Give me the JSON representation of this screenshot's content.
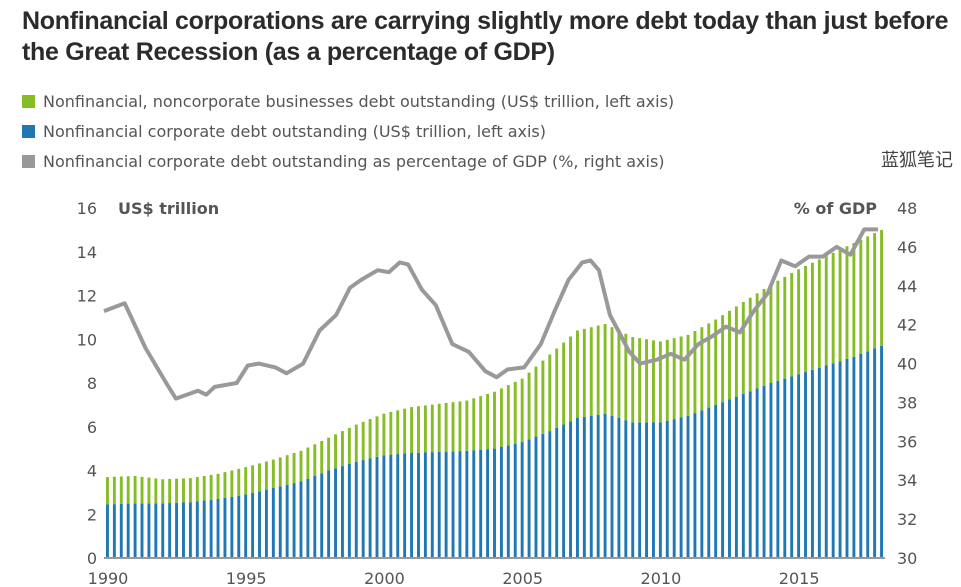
{
  "title": "Nonfinancial corporations are carrying slightly more debt today than just before the Great Recession (as a percentage of GDP)",
  "legend": [
    {
      "label": "Nonfinancial, noncorporate businesses debt outstanding (US$ trillion, left axis)",
      "color": "#86bc25"
    },
    {
      "label": "Nonfinancial corporate debt outstanding (US$ trillion, left axis)",
      "color": "#1f77b4"
    },
    {
      "label": "Nonfinancial corporate debt outstanding as percentage of GDP (%, right axis)",
      "color": "#999999"
    }
  ],
  "watermark": "蓝狐笔记",
  "chart_data": {
    "type": "bar",
    "title": "Nonfinancial corporations are carrying slightly more debt today than just before the Great Recession (as a percentage of GDP)",
    "left_axis": {
      "label": "US$ trillion",
      "range": [
        0,
        16
      ],
      "ticks": [
        "0",
        "2",
        "4",
        "6",
        "8",
        "10",
        "12",
        "14",
        "16"
      ]
    },
    "right_axis": {
      "label": "% of GDP",
      "range": [
        30,
        48
      ],
      "ticks": [
        "30",
        "32",
        "34",
        "36",
        "38",
        "40",
        "42",
        "44",
        "46",
        "48"
      ]
    },
    "x_ticks": [
      "1990",
      "1995",
      "2000",
      "2005",
      "2010",
      "2015"
    ],
    "frequency": "quarterly",
    "x_start": 1990,
    "stacked": true,
    "colors": {
      "corporate": "#1f77b4",
      "noncorporate": "#86bc25",
      "pct_line": "#999999"
    },
    "series": [
      {
        "name": "Nonfinancial corporate debt outstanding (US$ trillion, left axis)",
        "axis": "left",
        "type": "bar",
        "annual": [
          [
            1990,
            2.45
          ],
          [
            1991,
            2.5
          ],
          [
            1992,
            2.5
          ],
          [
            1993,
            2.55
          ],
          [
            1994,
            2.7
          ],
          [
            1995,
            2.9
          ],
          [
            1996,
            3.2
          ],
          [
            1997,
            3.5
          ],
          [
            1998,
            4.0
          ],
          [
            1999,
            4.4
          ],
          [
            2000,
            4.7
          ],
          [
            2001,
            4.8
          ],
          [
            2002,
            4.85
          ],
          [
            2003,
            4.9
          ],
          [
            2004,
            5.0
          ],
          [
            2005,
            5.3
          ],
          [
            2006,
            5.8
          ],
          [
            2007,
            6.4
          ],
          [
            2008,
            6.6
          ],
          [
            2009,
            6.2
          ],
          [
            2010,
            6.2
          ],
          [
            2011,
            6.5
          ],
          [
            2012,
            7.0
          ],
          [
            2013,
            7.5
          ],
          [
            2014,
            8.0
          ],
          [
            2015,
            8.4
          ],
          [
            2016,
            8.8
          ],
          [
            2017,
            9.2
          ],
          [
            2018,
            9.7
          ]
        ]
      },
      {
        "name": "Nonfinancial, noncorporate businesses debt outstanding (US$ trillion, left axis)",
        "axis": "left",
        "type": "bar",
        "annual": [
          [
            1990,
            1.25
          ],
          [
            1991,
            1.25
          ],
          [
            1992,
            1.1
          ],
          [
            1993,
            1.1
          ],
          [
            1994,
            1.15
          ],
          [
            1995,
            1.25
          ],
          [
            1996,
            1.3
          ],
          [
            1997,
            1.4
          ],
          [
            1998,
            1.5
          ],
          [
            1999,
            1.7
          ],
          [
            2000,
            1.9
          ],
          [
            2001,
            2.1
          ],
          [
            2002,
            2.2
          ],
          [
            2003,
            2.3
          ],
          [
            2004,
            2.6
          ],
          [
            2005,
            2.9
          ],
          [
            2006,
            3.5
          ],
          [
            2007,
            4.0
          ],
          [
            2008,
            4.1
          ],
          [
            2009,
            3.9
          ],
          [
            2010,
            3.7
          ],
          [
            2011,
            3.7
          ],
          [
            2012,
            3.9
          ],
          [
            2013,
            4.2
          ],
          [
            2014,
            4.5
          ],
          [
            2015,
            4.8
          ],
          [
            2016,
            5.0
          ],
          [
            2017,
            5.2
          ],
          [
            2018,
            5.3
          ]
        ]
      },
      {
        "name": "Nonfinancial corporate debt outstanding as percentage of GDP (%, right axis)",
        "axis": "right",
        "type": "line",
        "annual": [
          [
            1990,
            42.7
          ],
          [
            1990.75,
            43.1
          ],
          [
            1991.5,
            40.8
          ],
          [
            1992.25,
            39.0
          ],
          [
            1992.6,
            38.2
          ],
          [
            1993.4,
            38.6
          ],
          [
            1993.7,
            38.4
          ],
          [
            1994.0,
            38.8
          ],
          [
            1994.8,
            39.0
          ],
          [
            1995.2,
            39.9
          ],
          [
            1995.6,
            40.0
          ],
          [
            1996.2,
            39.8
          ],
          [
            1996.6,
            39.5
          ],
          [
            1997.2,
            40.0
          ],
          [
            1997.8,
            41.7
          ],
          [
            1998.4,
            42.5
          ],
          [
            1998.9,
            43.9
          ],
          [
            1999.3,
            44.3
          ],
          [
            1999.9,
            44.8
          ],
          [
            2000.3,
            44.7
          ],
          [
            2000.7,
            45.2
          ],
          [
            2001.0,
            45.1
          ],
          [
            2001.5,
            43.8
          ],
          [
            2002.0,
            43.0
          ],
          [
            2002.6,
            41.0
          ],
          [
            2003.2,
            40.6
          ],
          [
            2003.8,
            39.6
          ],
          [
            2004.2,
            39.3
          ],
          [
            2004.6,
            39.7
          ],
          [
            2005.2,
            39.8
          ],
          [
            2005.8,
            41.0
          ],
          [
            2006.3,
            42.7
          ],
          [
            2006.8,
            44.3
          ],
          [
            2007.3,
            45.2
          ],
          [
            2007.6,
            45.3
          ],
          [
            2007.9,
            44.8
          ],
          [
            2008.3,
            42.5
          ],
          [
            2008.6,
            41.7
          ],
          [
            2009.0,
            40.6
          ],
          [
            2009.4,
            40.0
          ],
          [
            2010.0,
            40.2
          ],
          [
            2010.5,
            40.5
          ],
          [
            2011.0,
            40.2
          ],
          [
            2011.5,
            41.0
          ],
          [
            2012.0,
            41.4
          ],
          [
            2012.5,
            41.9
          ],
          [
            2013.0,
            41.6
          ],
          [
            2013.5,
            42.7
          ],
          [
            2014.0,
            43.6
          ],
          [
            2014.5,
            45.3
          ],
          [
            2015.0,
            45.0
          ],
          [
            2015.5,
            45.5
          ],
          [
            2016.0,
            45.5
          ],
          [
            2016.5,
            46.0
          ],
          [
            2017.0,
            45.6
          ],
          [
            2017.5,
            46.9
          ],
          [
            2018.0,
            46.9
          ]
        ]
      }
    ]
  }
}
